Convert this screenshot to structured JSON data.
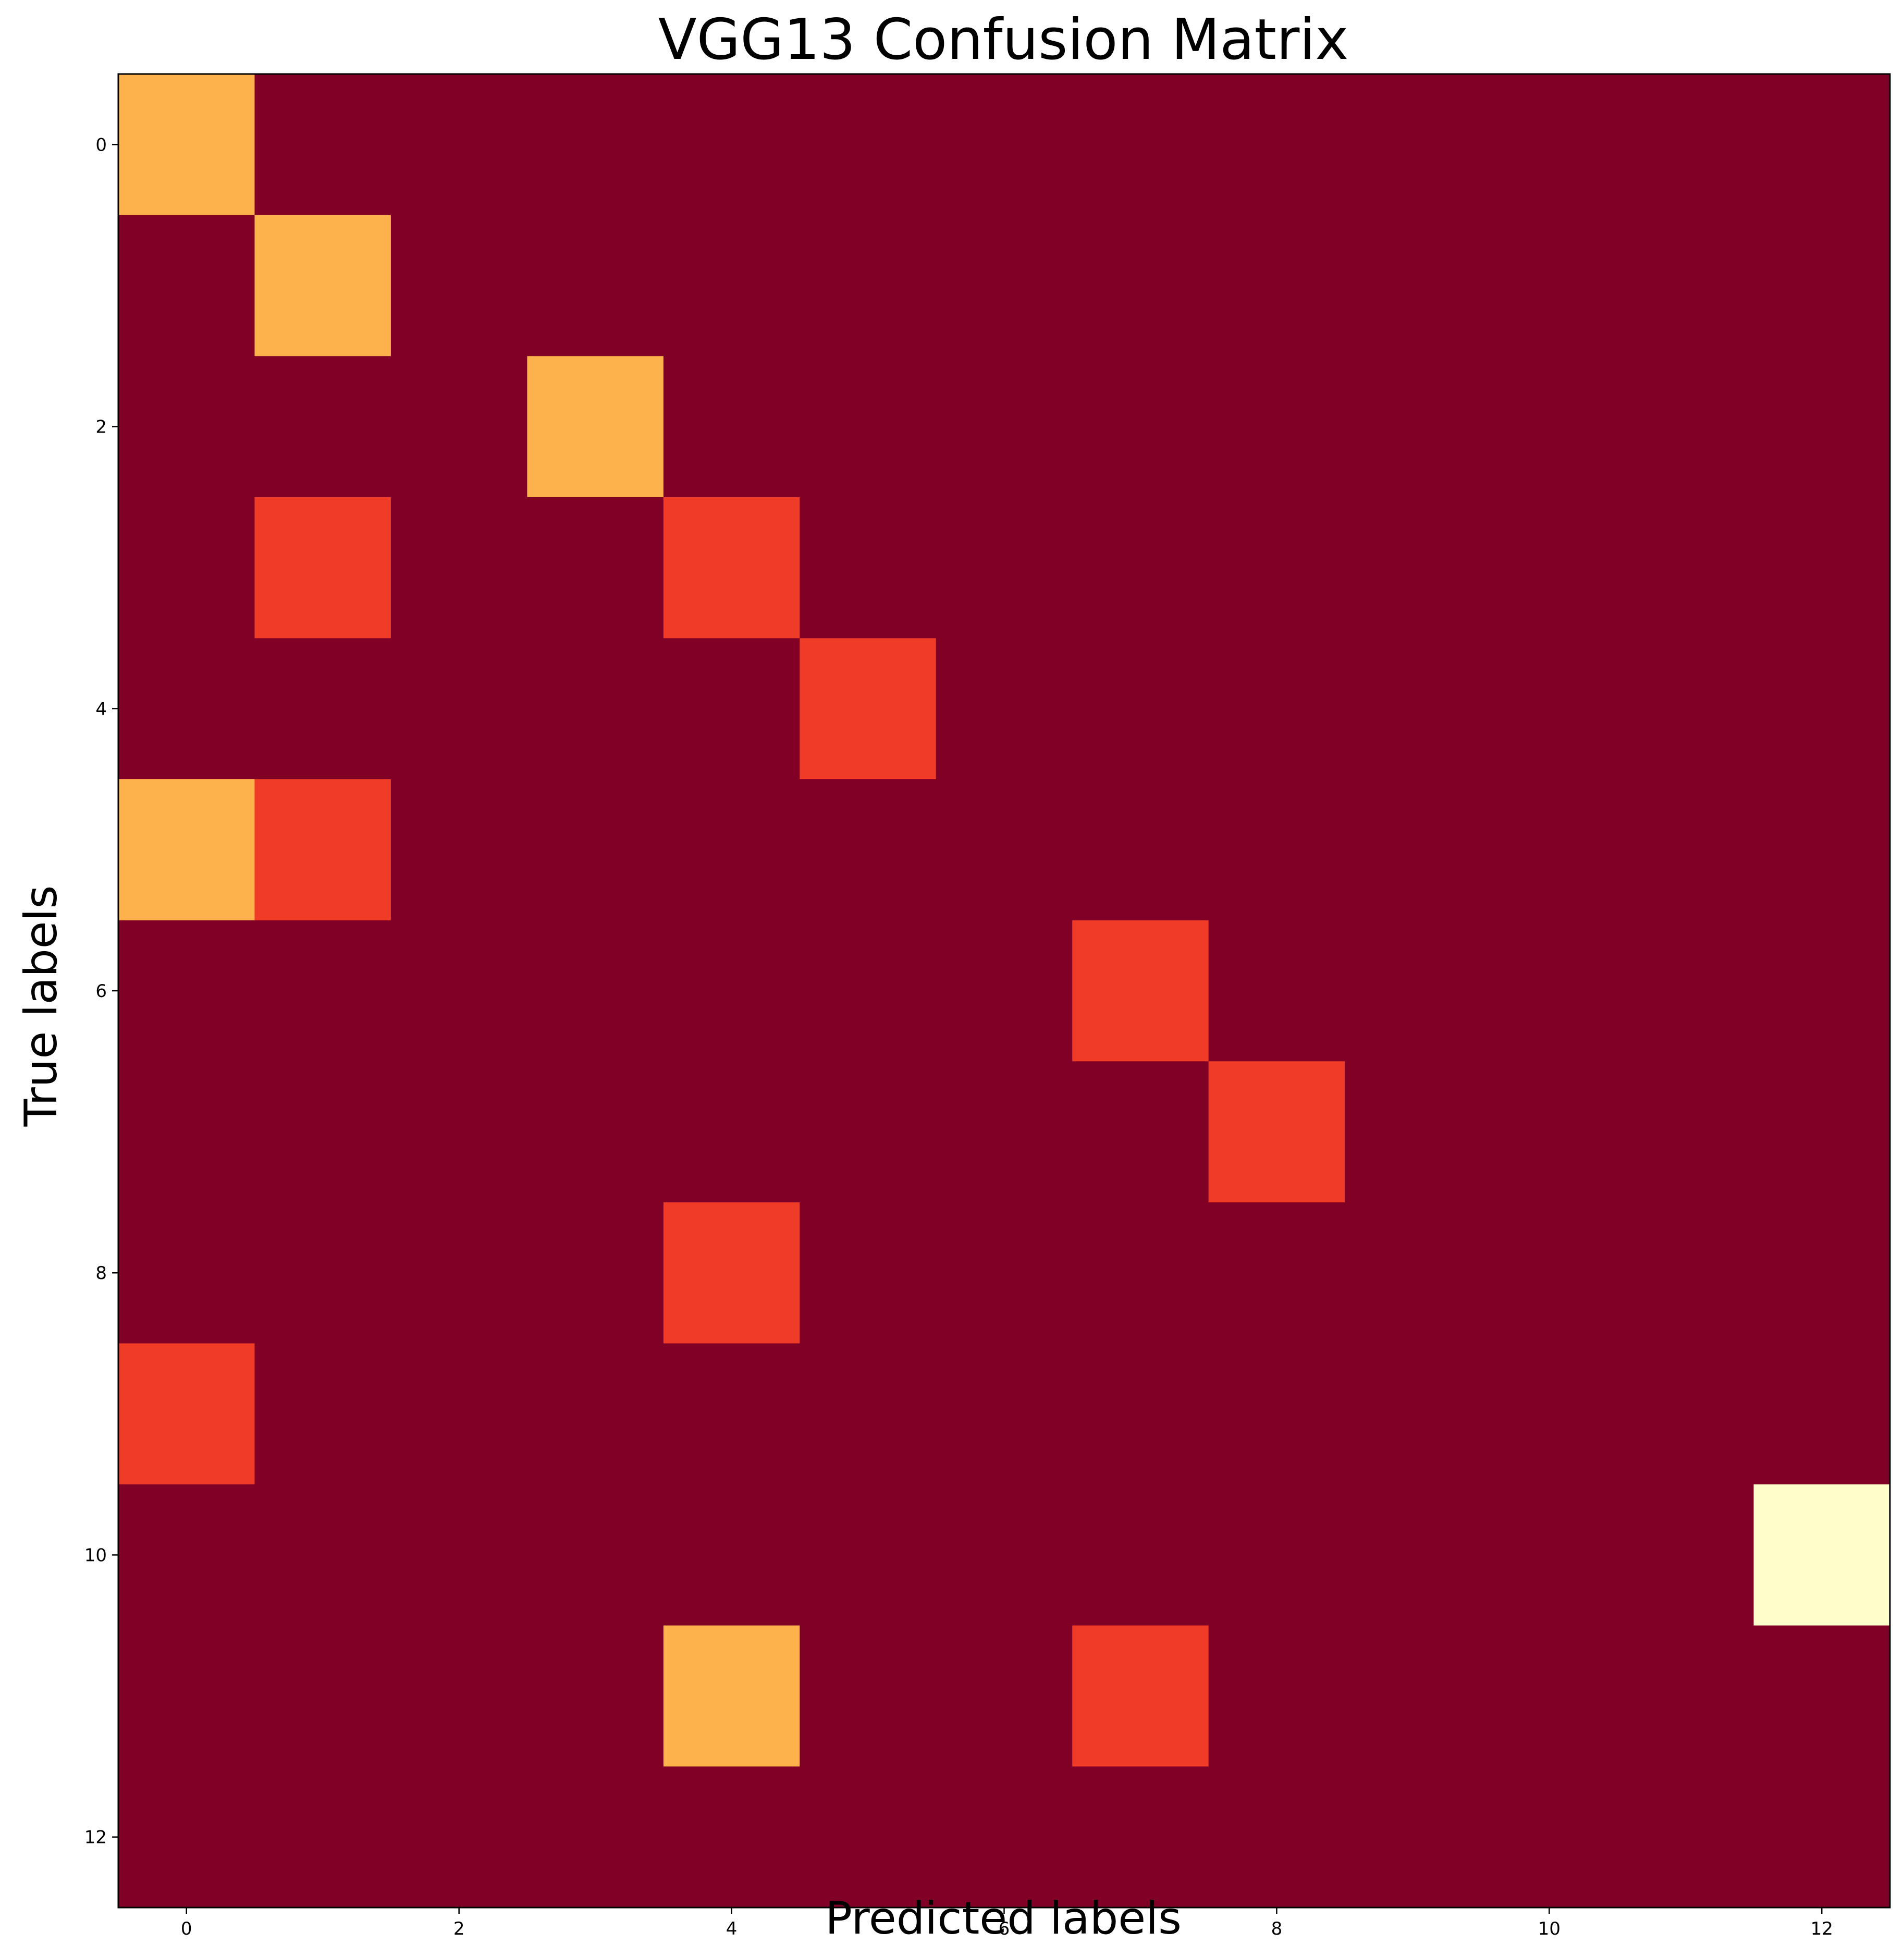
{
  "chart_data": {
    "type": "heatmap",
    "title": "VGG13 Confusion Matrix",
    "xlabel": "Predicted labels",
    "ylabel": "True labels",
    "n_classes": 13,
    "x_ticks": [
      "0",
      "2",
      "4",
      "6",
      "8",
      "10",
      "12"
    ],
    "y_ticks": [
      "0",
      "2",
      "4",
      "6",
      "8",
      "10",
      "12"
    ],
    "colormap": "YlOrRd_r",
    "value_range": [
      0,
      3
    ],
    "colors": {
      "0": "#800026",
      "1": "#f03b26",
      "2": "#feb24c",
      "3": "#ffffcc"
    },
    "matrix": [
      [
        2,
        0,
        0,
        0,
        0,
        0,
        0,
        0,
        0,
        0,
        0,
        0,
        0
      ],
      [
        0,
        2,
        0,
        0,
        0,
        0,
        0,
        0,
        0,
        0,
        0,
        0,
        0
      ],
      [
        0,
        0,
        0,
        2,
        0,
        0,
        0,
        0,
        0,
        0,
        0,
        0,
        0
      ],
      [
        0,
        1,
        0,
        0,
        1,
        0,
        0,
        0,
        0,
        0,
        0,
        0,
        0
      ],
      [
        0,
        0,
        0,
        0,
        0,
        1,
        0,
        0,
        0,
        0,
        0,
        0,
        0
      ],
      [
        2,
        1,
        0,
        0,
        0,
        0,
        0,
        0,
        0,
        0,
        0,
        0,
        0
      ],
      [
        0,
        0,
        0,
        0,
        0,
        0,
        0,
        1,
        0,
        0,
        0,
        0,
        0
      ],
      [
        0,
        0,
        0,
        0,
        0,
        0,
        0,
        0,
        1,
        0,
        0,
        0,
        0
      ],
      [
        0,
        0,
        0,
        0,
        1,
        0,
        0,
        0,
        0,
        0,
        0,
        0,
        0
      ],
      [
        1,
        0,
        0,
        0,
        0,
        0,
        0,
        0,
        0,
        0,
        0,
        0,
        0
      ],
      [
        0,
        0,
        0,
        0,
        0,
        0,
        0,
        0,
        0,
        0,
        0,
        0,
        3
      ],
      [
        0,
        0,
        0,
        0,
        2,
        0,
        0,
        1,
        0,
        0,
        0,
        0,
        0
      ],
      [
        0,
        0,
        0,
        0,
        0,
        0,
        0,
        0,
        0,
        0,
        0,
        0,
        0
      ]
    ]
  }
}
